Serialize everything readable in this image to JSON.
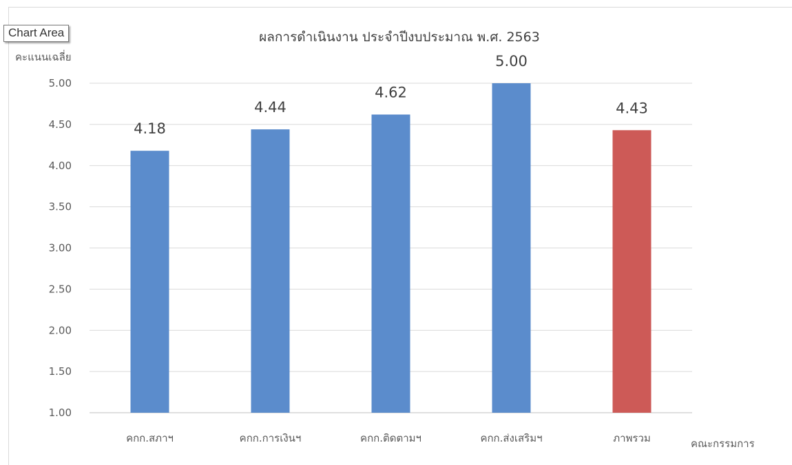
{
  "tooltip": "Chart Area",
  "chart_data": {
    "type": "bar",
    "title": "ผลการดำเนินงาน ประจำปีงบประมาณ พ.ศ. 2563",
    "ylabel": "คะแนนเฉลี่ย",
    "xlabel": "คณะกรรมการ",
    "categories": [
      "คกก.สภาฯ",
      "คกก.การเงินฯ",
      "คกก.ติดตามฯ",
      "คกก.ส่งเสริมฯ",
      "ภาพรวม"
    ],
    "values": [
      4.18,
      4.44,
      4.62,
      5.0,
      4.43
    ],
    "data_labels": [
      "4.18",
      "4.44",
      "4.62",
      "5.00",
      "4.43"
    ],
    "bar_colors": [
      "#5b8ccc",
      "#5b8ccc",
      "#5b8ccc",
      "#5b8ccc",
      "#cd5a57"
    ],
    "ylim": [
      1.0,
      5.0
    ],
    "yticks": [
      "1.00",
      "1.50",
      "2.00",
      "2.50",
      "3.00",
      "3.50",
      "4.00",
      "4.50",
      "5.00"
    ],
    "grid": true
  }
}
